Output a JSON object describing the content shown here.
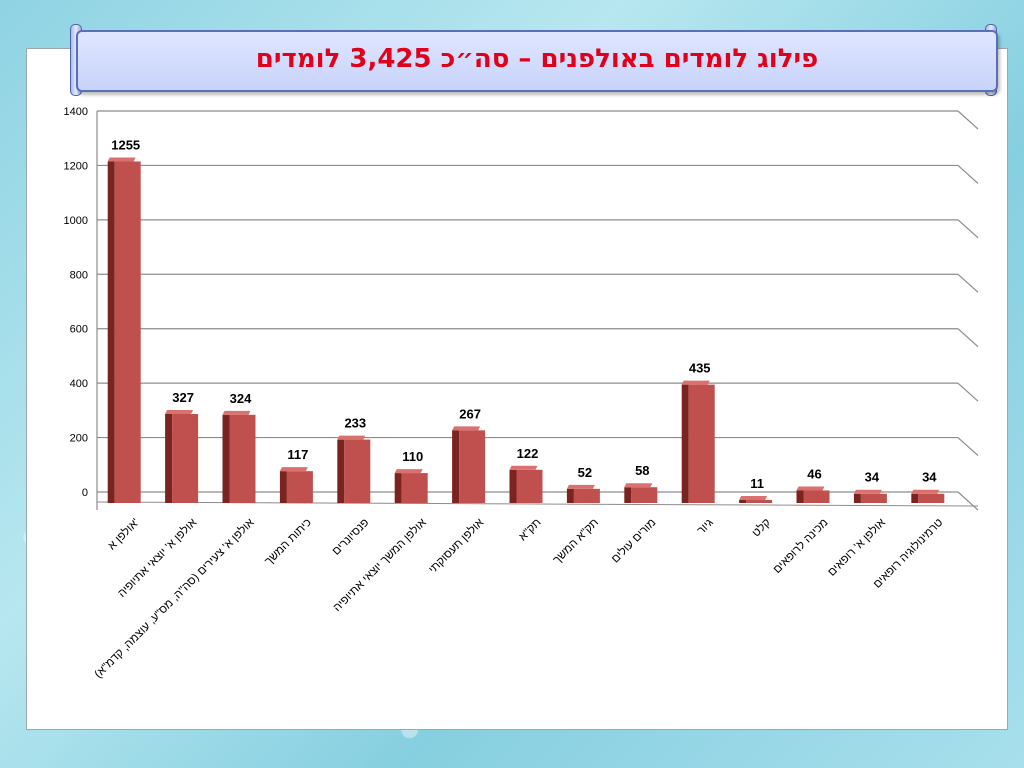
{
  "slide": {
    "title": "פילוג לומדים באולפנים – סה״כ 3,425 לומדים"
  },
  "colors": {
    "bar_front": "#c0504d",
    "bar_side": "#7b2321",
    "bar_top": "#d9726f",
    "title_text": "#e0001b"
  },
  "chart_data": {
    "type": "bar",
    "title": "",
    "xlabel": "",
    "ylabel": "",
    "ylim": [
      0,
      1400
    ],
    "yticks": [
      0,
      200,
      400,
      600,
      800,
      1000,
      1200,
      1400
    ],
    "grid": true,
    "categories": [
      "אולפן א'",
      "אולפן א' יוצאי אתיופיה",
      "אולפן א' צעירים (סה\"ה, מס\"ע, עוצמה, קדמ\"א)",
      "כיתות המשך",
      "פנסיונרים",
      "אולפן המשך יוצאי אתיופיה",
      "אולפן תעסוקתי",
      "תק\"א",
      "תק\"א המשך",
      "מורים עולים",
      "גיור",
      "קלט",
      "מכינה לרופאים",
      "אולפן א' רופאים",
      "טרמינולוגיה רופאים"
    ],
    "values": [
      1255,
      327,
      324,
      117,
      233,
      110,
      267,
      122,
      52,
      58,
      435,
      11,
      46,
      34,
      34
    ],
    "data_labels": [
      "1255",
      "327",
      "324",
      "117",
      "233",
      "110",
      "267",
      "122",
      "52",
      "58",
      "435",
      "11",
      "46",
      "34",
      "34"
    ]
  }
}
